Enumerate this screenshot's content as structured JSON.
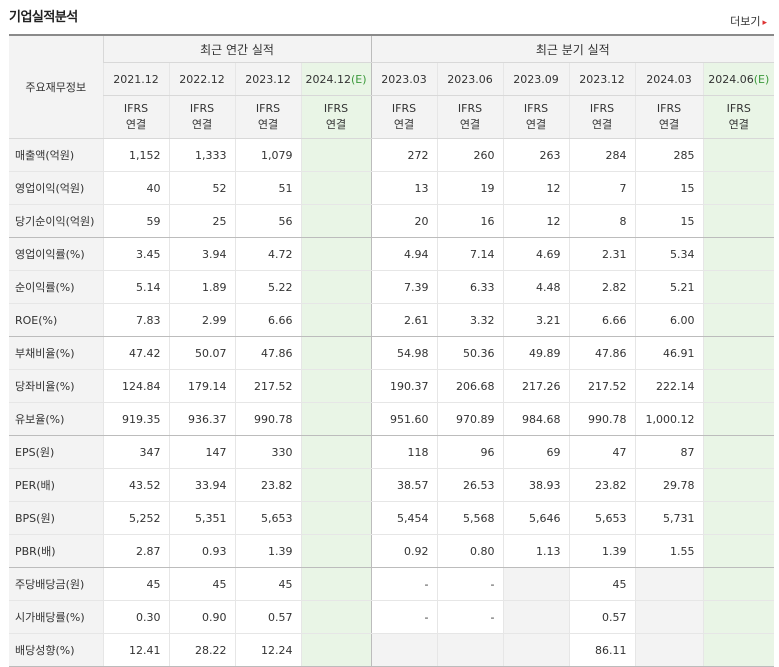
{
  "section_title": "기업실적분석",
  "more_label": "더보기",
  "more_arrow": "▸",
  "row_header": "주요재무정보",
  "annual_header": "최근 연간 실적",
  "quarter_header": "최근 분기 실적",
  "periods": [
    {
      "label": "2021.12",
      "estimate": false
    },
    {
      "label": "2022.12",
      "estimate": false
    },
    {
      "label": "2023.12",
      "estimate": false
    },
    {
      "label": "2024.12",
      "est_mark": "(E)",
      "estimate": true
    },
    {
      "label": "2023.03",
      "estimate": false
    },
    {
      "label": "2023.06",
      "estimate": false
    },
    {
      "label": "2023.09",
      "estimate": false
    },
    {
      "label": "2023.12",
      "estimate": false
    },
    {
      "label": "2024.03",
      "estimate": false
    },
    {
      "label": "2024.06",
      "est_mark": "(E)",
      "estimate": true
    }
  ],
  "ifrs_line1": "IFRS",
  "ifrs_line2": "연결",
  "rows": [
    {
      "label": "매출액(억원)",
      "values": [
        "1,152",
        "1,333",
        "1,079",
        "",
        "272",
        "260",
        "263",
        "284",
        "285",
        ""
      ]
    },
    {
      "label": "영업이익(억원)",
      "values": [
        "40",
        "52",
        "51",
        "",
        "13",
        "19",
        "12",
        "7",
        "15",
        ""
      ]
    },
    {
      "label": "당기순이익(억원)",
      "values": [
        "59",
        "25",
        "56",
        "",
        "20",
        "16",
        "12",
        "8",
        "15",
        ""
      ]
    },
    {
      "label": "영업이익률(%)",
      "values": [
        "3.45",
        "3.94",
        "4.72",
        "",
        "4.94",
        "7.14",
        "4.69",
        "2.31",
        "5.34",
        ""
      ]
    },
    {
      "label": "순이익률(%)",
      "values": [
        "5.14",
        "1.89",
        "5.22",
        "",
        "7.39",
        "6.33",
        "4.48",
        "2.82",
        "5.21",
        ""
      ]
    },
    {
      "label": "ROE(%)",
      "values": [
        "7.83",
        "2.99",
        "6.66",
        "",
        "2.61",
        "3.32",
        "3.21",
        "6.66",
        "6.00",
        ""
      ]
    },
    {
      "label": "부채비율(%)",
      "values": [
        "47.42",
        "50.07",
        "47.86",
        "",
        "54.98",
        "50.36",
        "49.89",
        "47.86",
        "46.91",
        ""
      ]
    },
    {
      "label": "당좌비율(%)",
      "values": [
        "124.84",
        "179.14",
        "217.52",
        "",
        "190.37",
        "206.68",
        "217.26",
        "217.52",
        "222.14",
        ""
      ]
    },
    {
      "label": "유보율(%)",
      "values": [
        "919.35",
        "936.37",
        "990.78",
        "",
        "951.60",
        "970.89",
        "984.68",
        "990.78",
        "1,000.12",
        ""
      ]
    },
    {
      "label": "EPS(원)",
      "values": [
        "347",
        "147",
        "330",
        "",
        "118",
        "96",
        "69",
        "47",
        "87",
        ""
      ]
    },
    {
      "label": "PER(배)",
      "values": [
        "43.52",
        "33.94",
        "23.82",
        "",
        "38.57",
        "26.53",
        "38.93",
        "23.82",
        "29.78",
        ""
      ]
    },
    {
      "label": "BPS(원)",
      "values": [
        "5,252",
        "5,351",
        "5,653",
        "",
        "5,454",
        "5,568",
        "5,646",
        "5,653",
        "5,731",
        ""
      ]
    },
    {
      "label": "PBR(배)",
      "values": [
        "2.87",
        "0.93",
        "1.39",
        "",
        "0.92",
        "0.80",
        "1.13",
        "1.39",
        "1.55",
        ""
      ]
    },
    {
      "label": "주당배당금(원)",
      "values": [
        "45",
        "45",
        "45",
        "",
        "-",
        "-",
        "",
        "45",
        "",
        ""
      ]
    },
    {
      "label": "시가배당률(%)",
      "values": [
        "0.30",
        "0.90",
        "0.57",
        "",
        "-",
        "-",
        "",
        "0.57",
        "",
        ""
      ]
    },
    {
      "label": "배당성향(%)",
      "values": [
        "12.41",
        "28.22",
        "12.24",
        "",
        "",
        "",
        "",
        "86.11",
        "",
        ""
      ]
    }
  ],
  "group_ends": [
    2,
    5,
    8,
    12,
    15
  ]
}
